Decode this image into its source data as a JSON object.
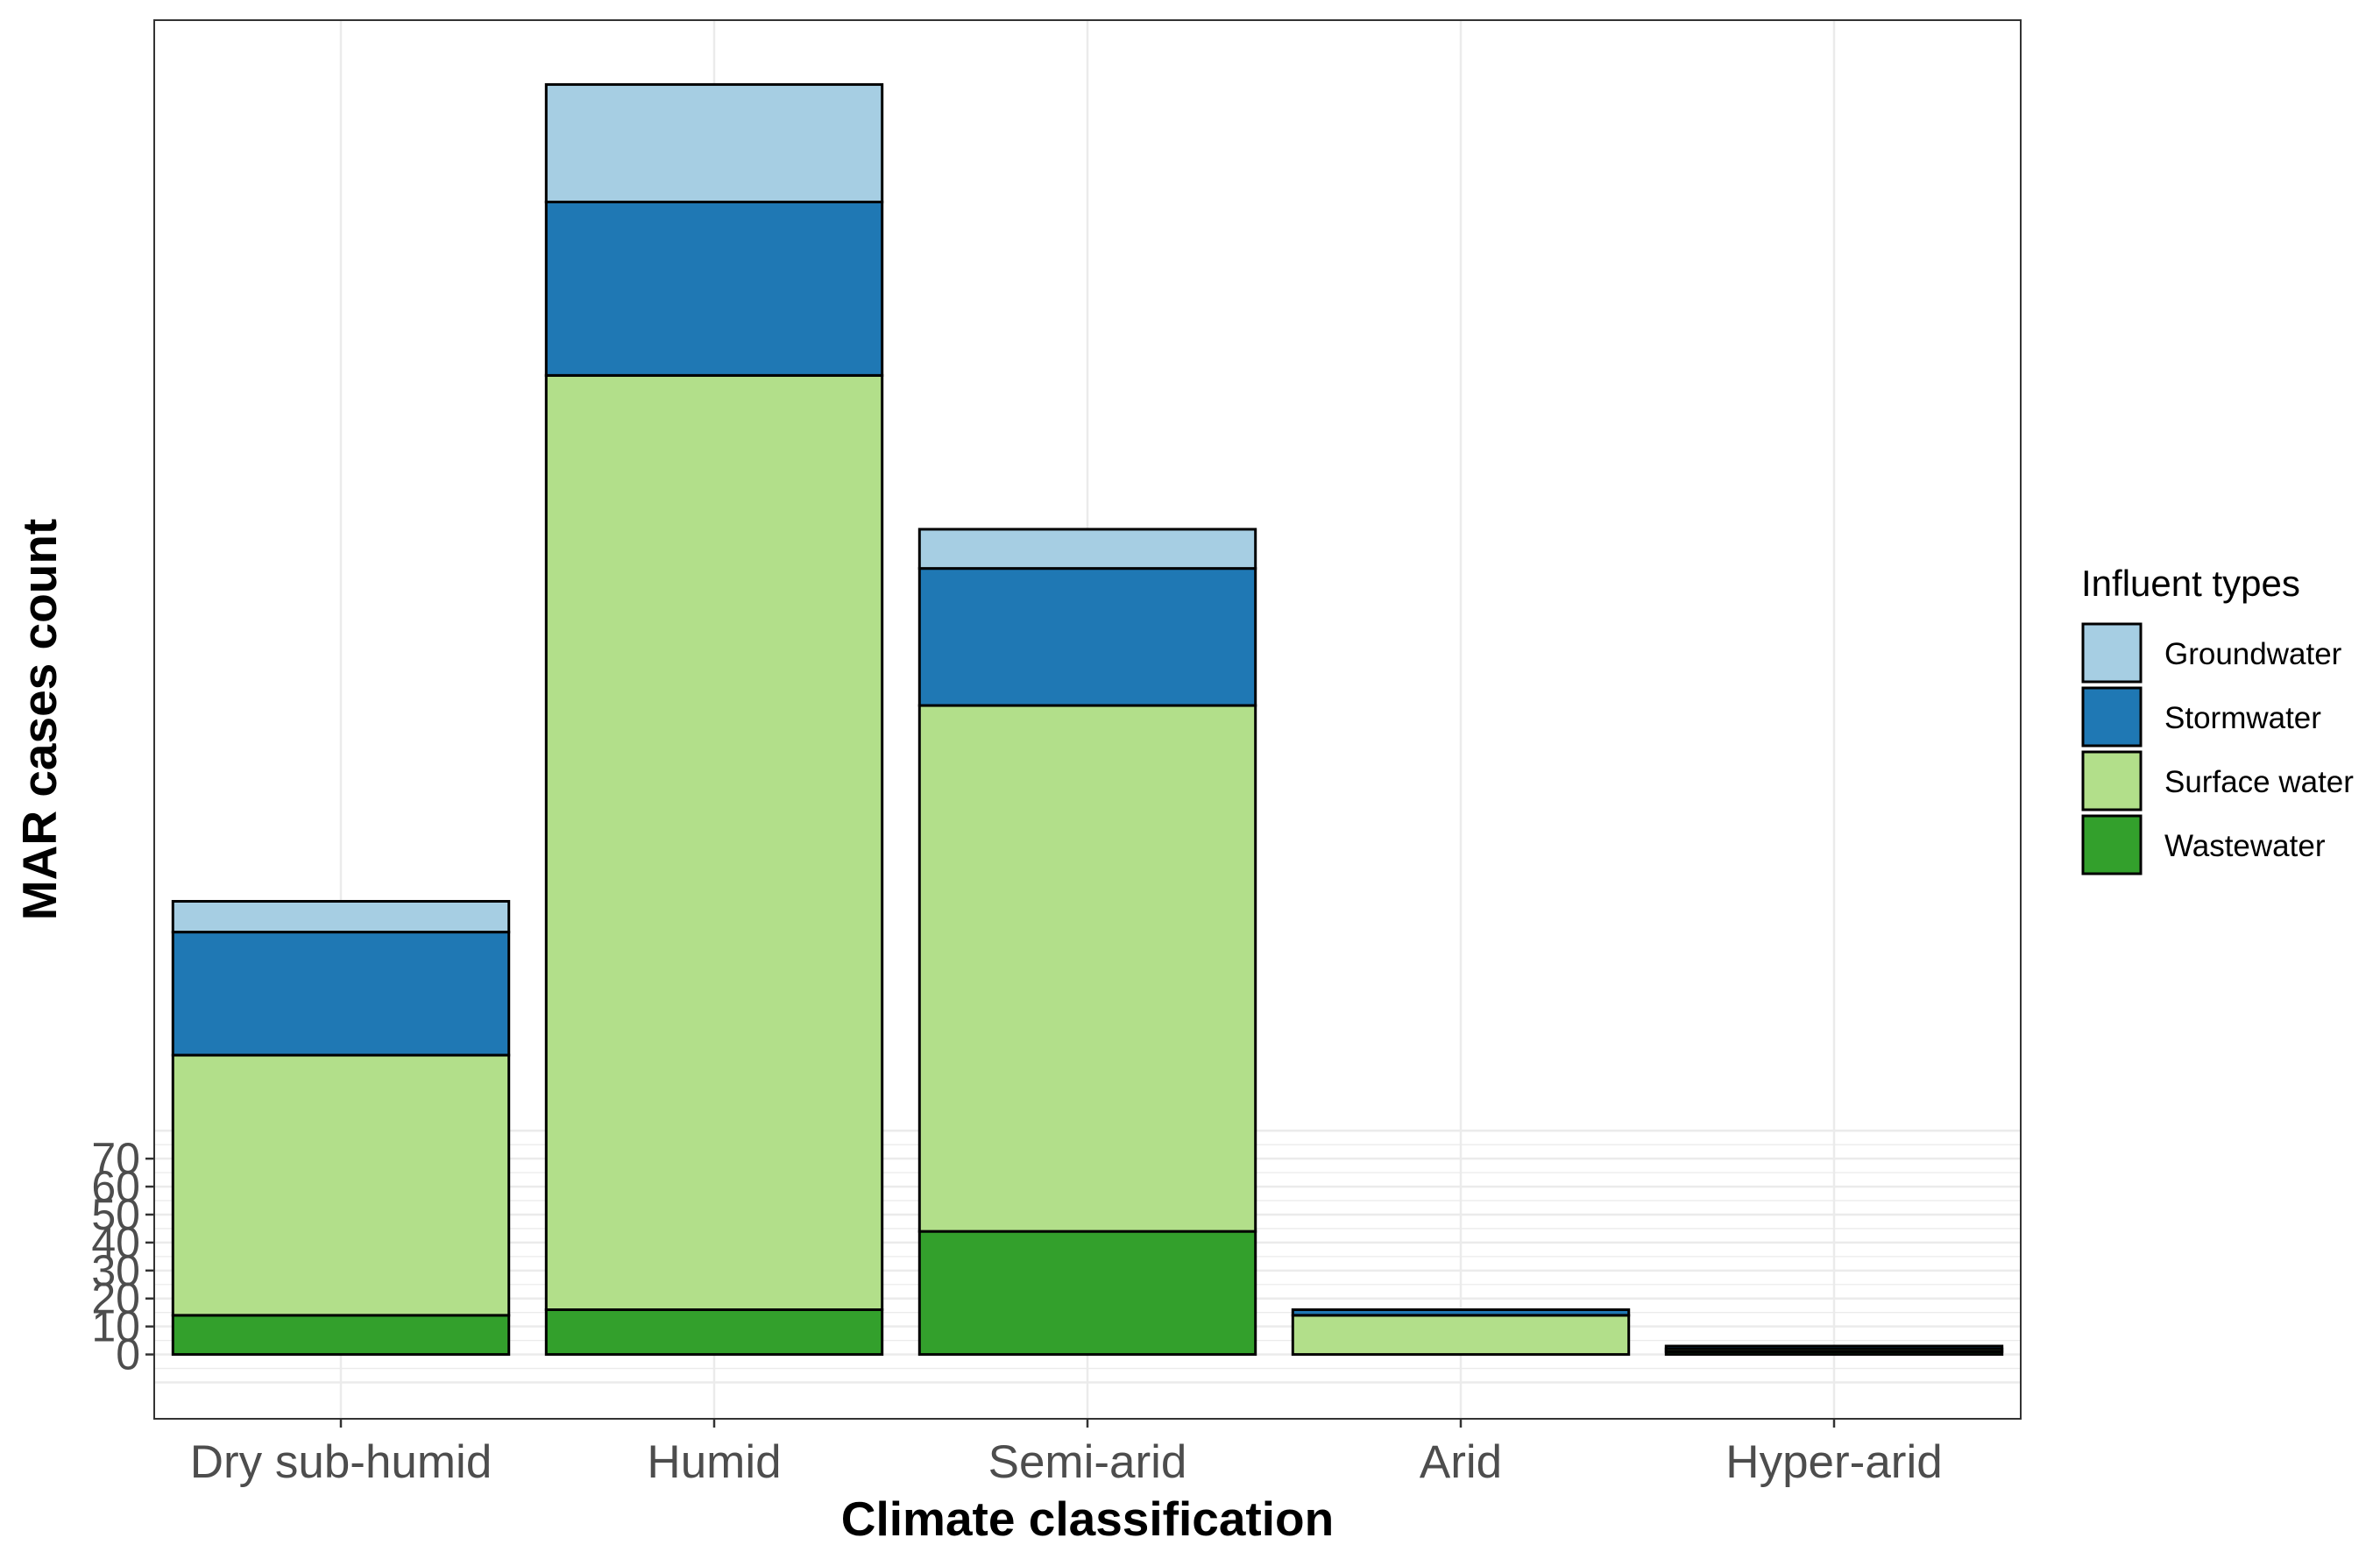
{
  "chart_data": {
    "type": "bar",
    "stacked": true,
    "categories": [
      "Dry sub-humid",
      "Humid",
      "Semi-arid",
      "Arid",
      "Hyper-arid"
    ],
    "series": [
      {
        "name": "Wastewater",
        "color": "#33a02c",
        "values": [
          14,
          16,
          44,
          0,
          1
        ]
      },
      {
        "name": "Surface water",
        "color": "#b2df8a",
        "values": [
          93,
          334,
          188,
          14,
          1
        ]
      },
      {
        "name": "Stormwater",
        "color": "#1f78b4",
        "values": [
          44,
          62,
          49,
          2,
          1
        ]
      },
      {
        "name": "Groundwater",
        "color": "#a6cee3",
        "values": [
          11,
          42,
          14,
          0,
          0
        ]
      }
    ],
    "xlabel": "Climate classification",
    "ylabel": "MAR cases count",
    "y_ticks": [
      0,
      10,
      20,
      30,
      40,
      50,
      60,
      70
    ],
    "y_tick_labels": [
      "0",
      "10",
      "20",
      "30",
      "40",
      "50",
      "60",
      "70"
    ],
    "ylim": [
      -23,
      477
    ],
    "grid": true,
    "legend": {
      "title": "Influent types",
      "position": "right",
      "order": [
        "Groundwater",
        "Stormwater",
        "Surface water",
        "Wastewater"
      ]
    }
  }
}
